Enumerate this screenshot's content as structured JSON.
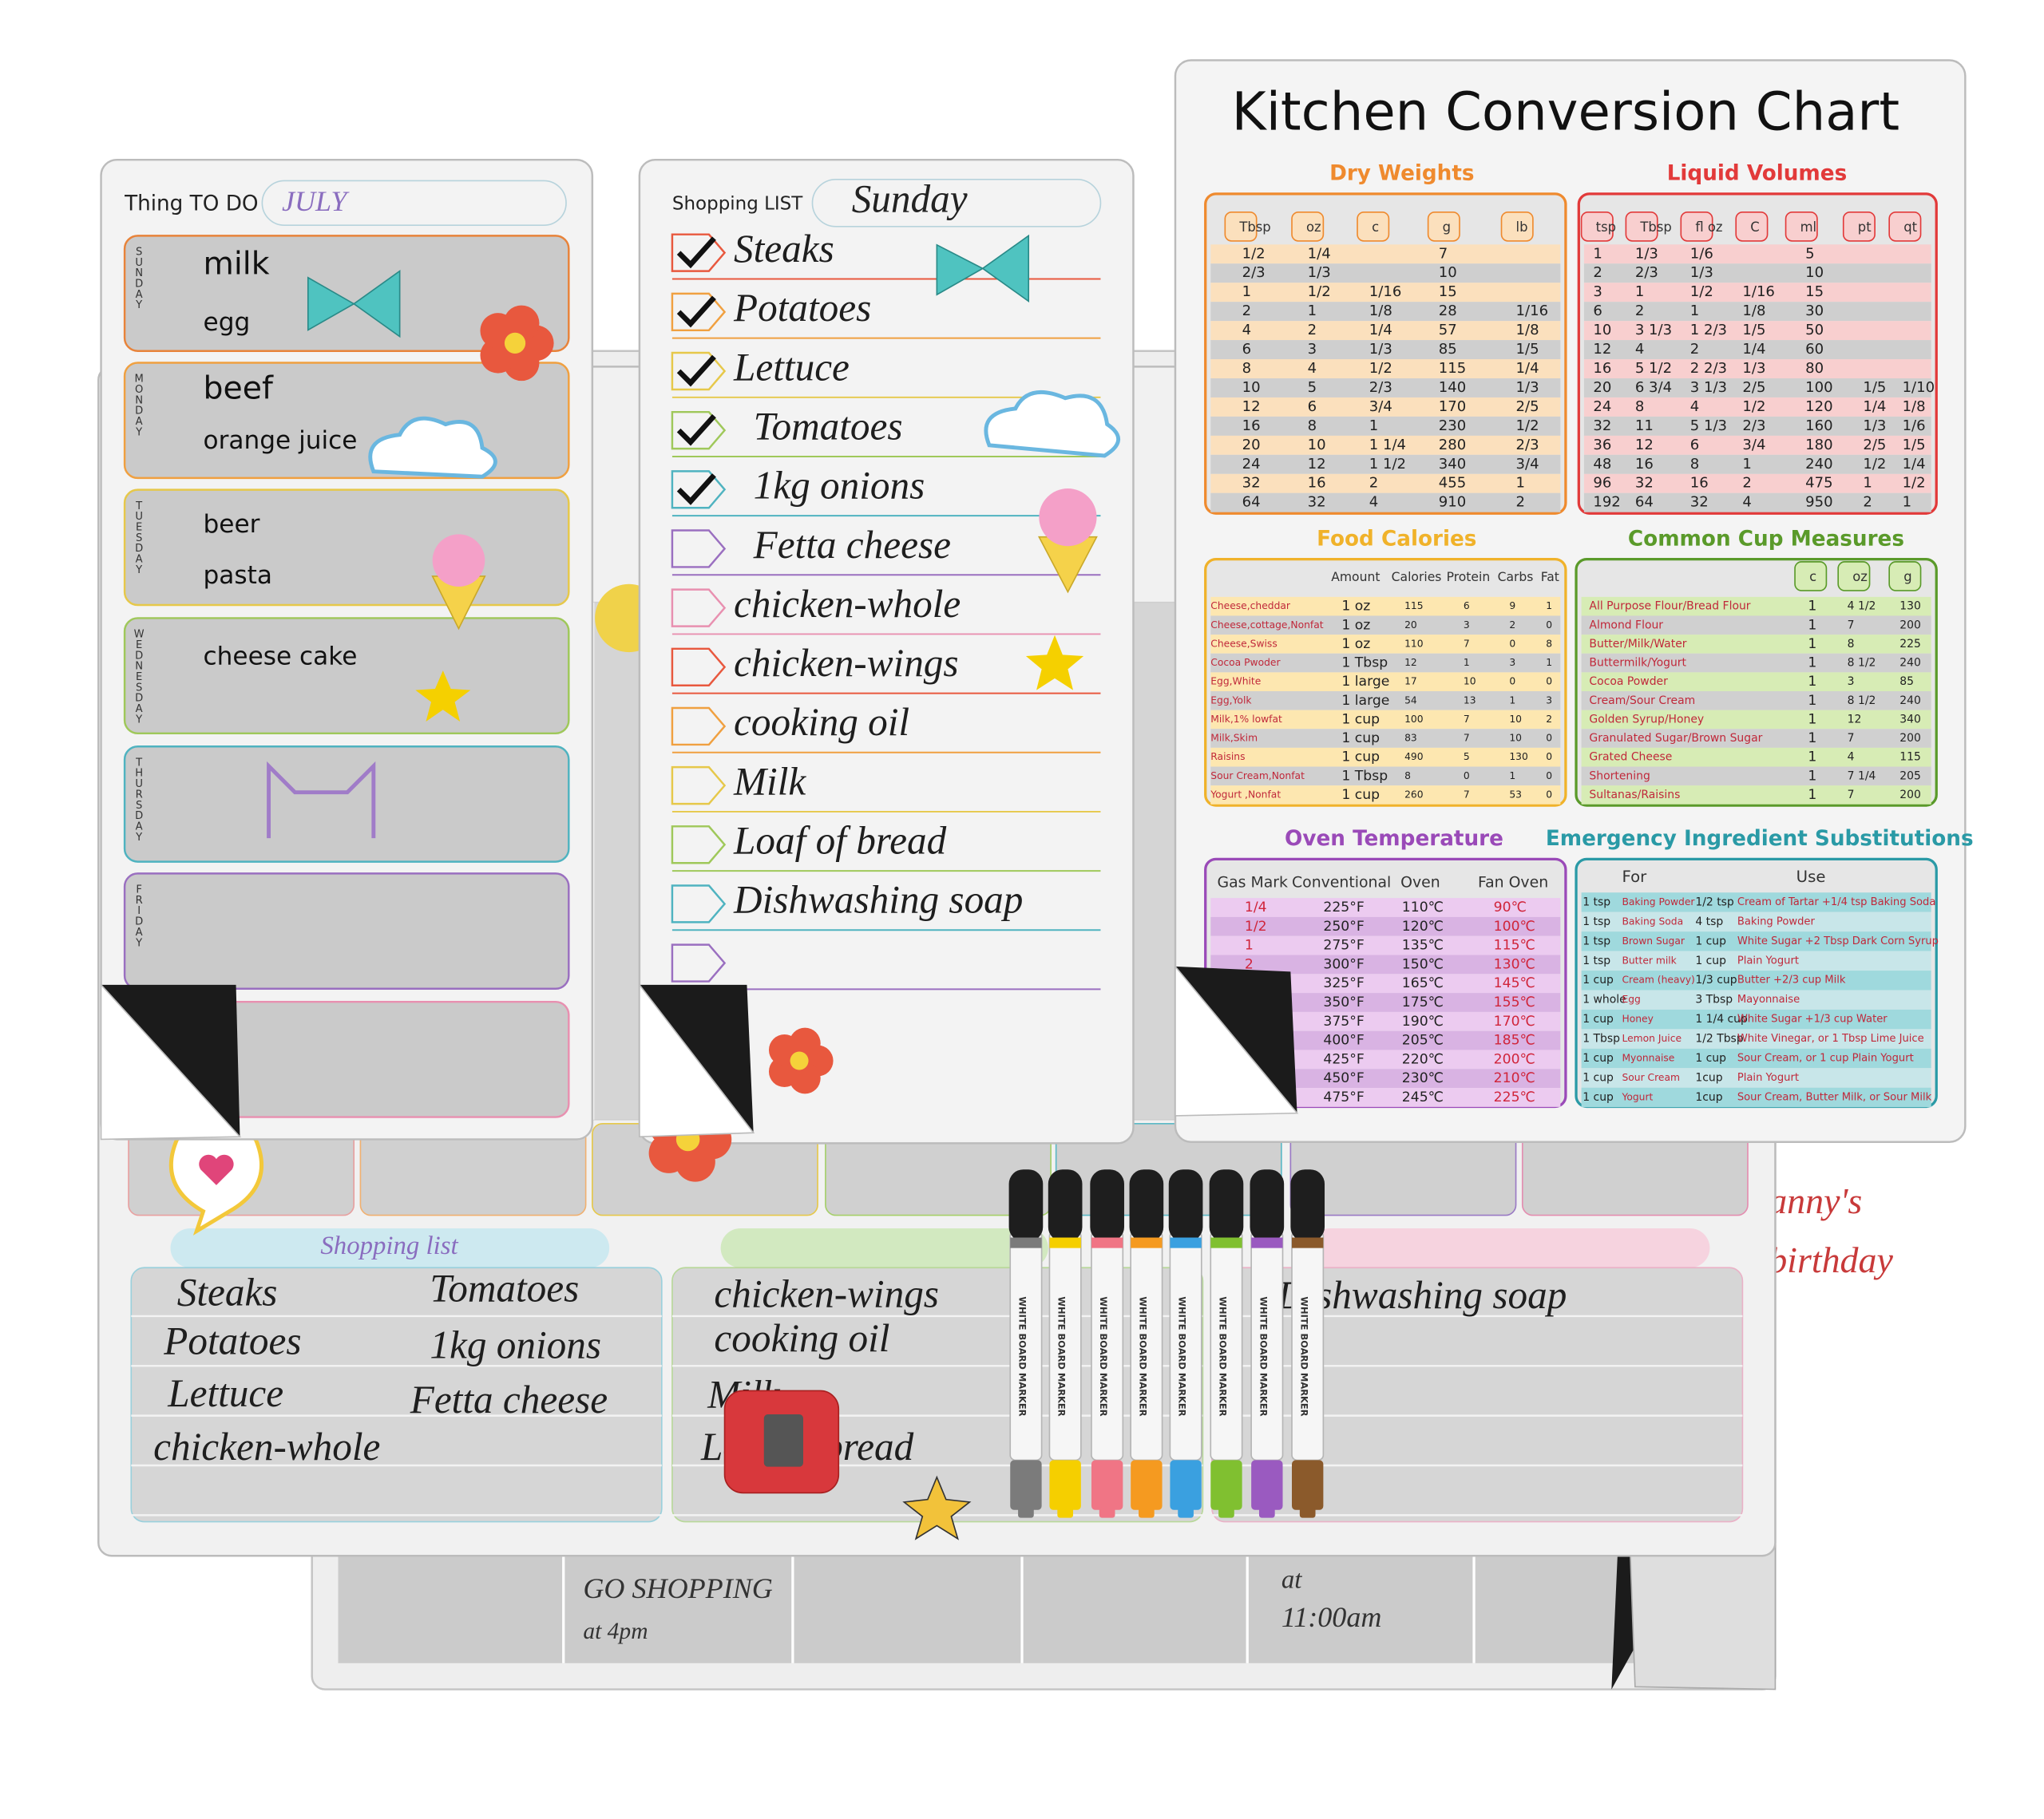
{
  "todo": {
    "title": "Thing TO DO",
    "month": "JULY",
    "days": [
      {
        "day": "SUNDAY",
        "items": [
          "milk",
          "egg"
        ]
      },
      {
        "day": "MONDAY",
        "items": [
          "beef",
          "orange juice"
        ]
      },
      {
        "day": "TUESDAY",
        "items": [
          "beer",
          "pasta"
        ]
      },
      {
        "day": "WEDNESDAY",
        "items": [
          "cheese cake"
        ]
      },
      {
        "day": "THURSDAY",
        "items": []
      },
      {
        "day": "FRIDAY",
        "items": []
      }
    ]
  },
  "shopping_list": {
    "title": "Shopping LIST",
    "day": "Sunday",
    "items": [
      {
        "text": "Steaks",
        "checked": true
      },
      {
        "text": "Potatoes",
        "checked": true
      },
      {
        "text": "Lettuce",
        "checked": true
      },
      {
        "text": "Tomatoes",
        "checked": true
      },
      {
        "text": "1kg onions",
        "checked": true
      },
      {
        "text": "Fetta cheese",
        "checked": false
      },
      {
        "text": "chicken-whole",
        "checked": false
      },
      {
        "text": "chicken-wings",
        "checked": false
      },
      {
        "text": "cooking oil",
        "checked": false
      },
      {
        "text": "Milk",
        "checked": false
      },
      {
        "text": "Loaf of bread",
        "checked": false
      },
      {
        "text": "Dishwashing soap",
        "checked": false
      }
    ]
  },
  "conversion_chart": {
    "title": "Kitchen Conversion Chart",
    "dry_weights": {
      "title": "Dry Weights",
      "headers": [
        "Tbsp",
        "oz",
        "c",
        "g",
        "lb"
      ],
      "rows": [
        [
          "1/2",
          "1/4",
          null,
          "7",
          null
        ],
        [
          "2/3",
          "1/3",
          null,
          "10",
          null
        ],
        [
          "1",
          "1/2",
          "1/16",
          "15",
          null
        ],
        [
          "2",
          "1",
          "1/8",
          "28",
          "1/16"
        ],
        [
          "4",
          "2",
          "1/4",
          "57",
          "1/8"
        ],
        [
          "6",
          "3",
          "1/3",
          "85",
          "1/5"
        ],
        [
          "8",
          "4",
          "1/2",
          "115",
          "1/4"
        ],
        [
          "10",
          "5",
          "2/3",
          "140",
          "1/3"
        ],
        [
          "12",
          "6",
          "3/4",
          "170",
          "2/5"
        ],
        [
          "16",
          "8",
          "1",
          "230",
          "1/2"
        ],
        [
          "20",
          "10",
          "1 1/4",
          "280",
          "2/3"
        ],
        [
          "24",
          "12",
          "1 1/2",
          "340",
          "3/4"
        ],
        [
          "32",
          "16",
          "2",
          "455",
          "1"
        ],
        [
          "64",
          "32",
          "4",
          "910",
          "2"
        ]
      ]
    },
    "liquid_volumes": {
      "title": "Liquid Volumes",
      "headers": [
        "tsp",
        "Tbsp",
        "fl oz",
        "C",
        "ml",
        "pt",
        "qt"
      ],
      "rows": [
        [
          "1",
          "1/3",
          "1/6",
          null,
          "5",
          null,
          null
        ],
        [
          "2",
          "2/3",
          "1/3",
          null,
          "10",
          null,
          null
        ],
        [
          "3",
          "1",
          "1/2",
          "1/16",
          "15",
          null,
          null
        ],
        [
          "6",
          "2",
          "1",
          "1/8",
          "30",
          null,
          null
        ],
        [
          "10",
          "3 1/3",
          "1 2/3",
          "1/5",
          "50",
          null,
          null
        ],
        [
          "12",
          "4",
          "2",
          "1/4",
          "60",
          null,
          null
        ],
        [
          "16",
          "5 1/2",
          "2 2/3",
          "1/3",
          "80",
          null,
          null
        ],
        [
          "20",
          "6 3/4",
          "3 1/3",
          "2/5",
          "100",
          "1/5",
          "1/10"
        ],
        [
          "24",
          "8",
          "4",
          "1/2",
          "120",
          "1/4",
          "1/8"
        ],
        [
          "32",
          "11",
          "5 1/3",
          "2/3",
          "160",
          "1/3",
          "1/6"
        ],
        [
          "36",
          "12",
          "6",
          "3/4",
          "180",
          "2/5",
          "1/5"
        ],
        [
          "48",
          "16",
          "8",
          "1",
          "240",
          "1/2",
          "1/4"
        ],
        [
          "96",
          "32",
          "16",
          "2",
          "475",
          "1",
          "1/2"
        ],
        [
          "192",
          "64",
          "32",
          "4",
          "950",
          "2",
          "1"
        ]
      ]
    },
    "food_calories": {
      "title": "Food Calories",
      "headers": [
        "Amount",
        "Calories",
        "Protein",
        "Carbs",
        "Fat"
      ],
      "rows": [
        [
          "Cheese,cheddar",
          "1 oz",
          "115",
          "6",
          "9",
          "1"
        ],
        [
          "Cheese,cottage,Nonfat",
          "1 oz",
          "20",
          "3",
          "2",
          "0"
        ],
        [
          "Cheese,Swiss",
          "1 oz",
          "110",
          "7",
          "0",
          "8"
        ],
        [
          "Cocoa Pwoder",
          "1 Tbsp",
          "12",
          "1",
          "3",
          "1"
        ],
        [
          "Egg,White",
          "1 large",
          "17",
          "10",
          "0",
          "0"
        ],
        [
          "Egg,Yolk",
          "1 large",
          "54",
          "13",
          "1",
          "3"
        ],
        [
          "Milk,1% lowfat",
          "1 cup",
          "100",
          "7",
          "10",
          "2"
        ],
        [
          "Milk,Skim",
          "1 cup",
          "83",
          "7",
          "10",
          "0"
        ],
        [
          "Raisins",
          "1 cup",
          "490",
          "5",
          "130",
          "0"
        ],
        [
          "Sour Cream,Nonfat",
          "1 Tbsp",
          "8",
          "0",
          "1",
          "0"
        ],
        [
          "Yogurt ,Nonfat",
          "1 cup",
          "260",
          "7",
          "53",
          "0"
        ]
      ]
    },
    "cup_measures": {
      "title": "Common Cup Measures",
      "headers": [
        "c",
        "oz",
        "g"
      ],
      "rows": [
        [
          "All Purpose Flour/Bread Flour",
          "1",
          "4 1/2",
          "130"
        ],
        [
          "Almond Flour",
          "1",
          "7",
          "200"
        ],
        [
          "Butter/Milk/Water",
          "1",
          "8",
          "225"
        ],
        [
          "Buttermilk/Yogurt",
          "1",
          "8 1/2",
          "240"
        ],
        [
          "Cocoa Powder",
          "1",
          "3",
          "85"
        ],
        [
          "Cream/Sour Cream",
          "1",
          "8 1/2",
          "240"
        ],
        [
          "Golden Syrup/Honey",
          "1",
          "12",
          "340"
        ],
        [
          "Granulated Sugar/Brown Sugar",
          "1",
          "7",
          "200"
        ],
        [
          "Grated Cheese",
          "1",
          "4",
          "115"
        ],
        [
          "Shortening",
          "1",
          "7 1/4",
          "205"
        ],
        [
          "Sultanas/Raisins",
          "1",
          "7",
          "200"
        ]
      ]
    },
    "oven_temperature": {
      "title": "Oven Temperature",
      "headers": [
        "Gas Mark",
        "Conventional",
        "Oven",
        "Fan Oven"
      ],
      "rows": [
        [
          "1/4",
          "225°F",
          "110℃",
          "90℃"
        ],
        [
          "1/2",
          "250°F",
          "120℃",
          "100℃"
        ],
        [
          "1",
          "275°F",
          "135℃",
          "115℃"
        ],
        [
          "2",
          "300°F",
          "150℃",
          "130℃"
        ],
        [
          null,
          "325°F",
          "165℃",
          "145℃"
        ],
        [
          null,
          "350°F",
          "175℃",
          "155℃"
        ],
        [
          null,
          "375°F",
          "190℃",
          "170℃"
        ],
        [
          null,
          "400°F",
          "205℃",
          "185℃"
        ],
        [
          null,
          "425°F",
          "220℃",
          "200℃"
        ],
        [
          null,
          "450°F",
          "230℃",
          "210℃"
        ],
        [
          null,
          "475°F",
          "245℃",
          "225℃"
        ]
      ]
    },
    "substitutions": {
      "title": "Emergency Ingredient Substitutions",
      "headers": [
        "For",
        "Use"
      ],
      "rows": [
        [
          "1 tsp",
          "Baking Powder",
          "1/2 tsp",
          "Cream of Tartar +1/4 tsp Baking Soda"
        ],
        [
          "1 tsp",
          "Baking Soda",
          "4 tsp",
          "Baking Powder"
        ],
        [
          "1 tsp",
          "Brown Sugar",
          "1 cup",
          "White Sugar +2 Tbsp Dark Corn Syrup"
        ],
        [
          "1 tsp",
          "Butter milk",
          "1 cup",
          "Plain Yogurt"
        ],
        [
          "1 cup",
          "Cream (heavy)",
          "1/3 cup",
          "Butter +2/3 cup Milk"
        ],
        [
          "1 whole",
          "Egg",
          "3 Tbsp",
          "Mayonnaise"
        ],
        [
          "1 cup",
          "Honey",
          "1 1/4 cup",
          "White Sugar +1/3 cup Water"
        ],
        [
          "1 Tbsp",
          "Lemon Juice",
          "1/2 Tbsp",
          "White Vinegar, or 1 Tbsp Lime Juice"
        ],
        [
          "1 cup",
          "Myonnaise",
          "1 cup",
          "Sour Cream, or 1 cup Plain Yogurt"
        ],
        [
          "1 cup",
          "Sour Cream",
          "1cup",
          "Plain Yogurt"
        ],
        [
          "1 cup",
          "Yogurt",
          "1cup",
          "Sour Cream, Butter Milk, or Sour Milk"
        ]
      ]
    }
  },
  "planner": {
    "shopping_label": "Shopping list",
    "shopping_columns": [
      [
        "Steaks",
        "Tomatoes",
        "Potatoes",
        "1kg onions",
        "Lettuce",
        "Fetta cheese",
        "chicken-whole"
      ],
      [
        "chicken-wings",
        "cooking oil",
        "Milk",
        "Loaf of bread"
      ],
      [
        "Dishwashing soap"
      ]
    ],
    "schedule": [
      "GO SHOPPING",
      "at 4pm",
      "at",
      "11:00am",
      "anny's",
      "birthday"
    ]
  },
  "markers": {
    "label": "WHITE BOARD MARKER"
  }
}
